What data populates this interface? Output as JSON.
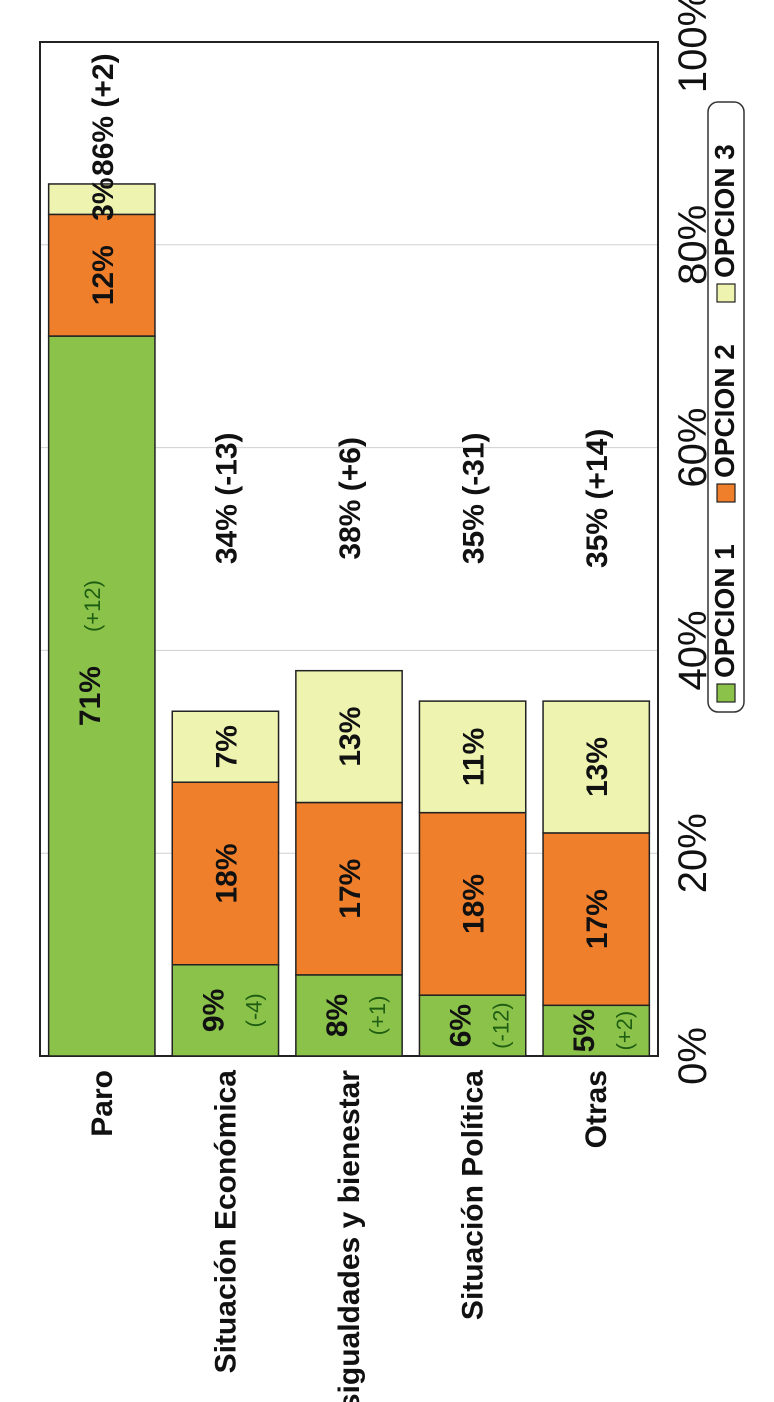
{
  "chart_data": {
    "type": "bar",
    "orientation": "horizontal-stacked",
    "categories": [
      "Paro",
      "Situación Económica",
      "Desigualdades y bienestar",
      "Situación Política",
      "Otras"
    ],
    "series": [
      {
        "name": "OPCION 1",
        "color": "#8bc34a",
        "values": [
          71,
          9,
          8,
          6,
          5
        ],
        "labels": [
          "71%",
          "9%",
          "8%",
          "6%",
          "5%"
        ],
        "deltas": [
          "(+12)",
          "(-4)",
          "(+1)",
          "(-12)",
          "(+2)"
        ]
      },
      {
        "name": "OPCION 2",
        "color": "#f07f2c",
        "values": [
          12,
          18,
          17,
          18,
          17
        ],
        "labels": [
          "12%",
          "18%",
          "17%",
          "18%",
          "17%"
        ]
      },
      {
        "name": "OPCION 3",
        "color": "#eef3b0",
        "values": [
          3,
          7,
          13,
          11,
          13
        ],
        "labels": [
          "3%",
          "7%",
          "13%",
          "11%",
          "13%"
        ]
      }
    ],
    "totals": [
      "86% (+2)",
      "34% (-13)",
      "38% (+6)",
      "35% (-31)",
      "35% (+14)"
    ],
    "x_ticks": [
      "0%",
      "20%",
      "40%",
      "60%",
      "80%",
      "100%"
    ],
    "xlim": [
      0,
      100
    ],
    "grid": true,
    "legend_position": "bottom"
  }
}
